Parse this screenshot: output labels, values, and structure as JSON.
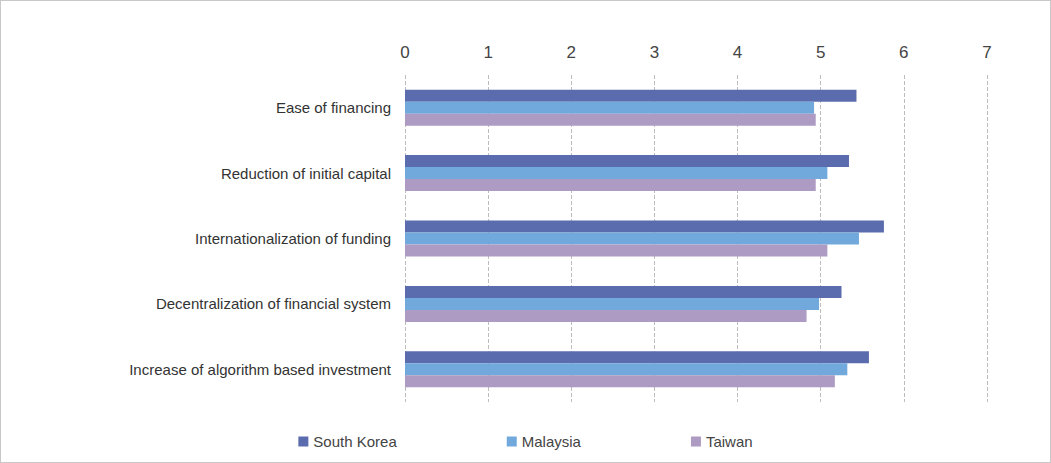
{
  "chart_data": {
    "type": "bar",
    "orientation": "horizontal",
    "categories": [
      "Ease of financing",
      "Reduction of initial capital",
      "Internationalization of funding",
      "Decentralization of financial system",
      "Increase of algorithm based investment"
    ],
    "series": [
      {
        "name": "South Korea",
        "color": "#5b6cae",
        "values": [
          5.43,
          5.34,
          5.76,
          5.25,
          5.58
        ]
      },
      {
        "name": "Malaysia",
        "color": "#72a9dc",
        "values": [
          4.92,
          5.08,
          5.46,
          4.98,
          5.32
        ]
      },
      {
        "name": "Taiwan",
        "color": "#ad9bc3",
        "values": [
          4.94,
          4.94,
          5.08,
          4.83,
          5.17
        ]
      }
    ],
    "xlim": [
      0,
      7
    ],
    "xticks": [
      0,
      1,
      2,
      3,
      4,
      5,
      6,
      7
    ],
    "grid": true,
    "legend": "bottom"
  }
}
